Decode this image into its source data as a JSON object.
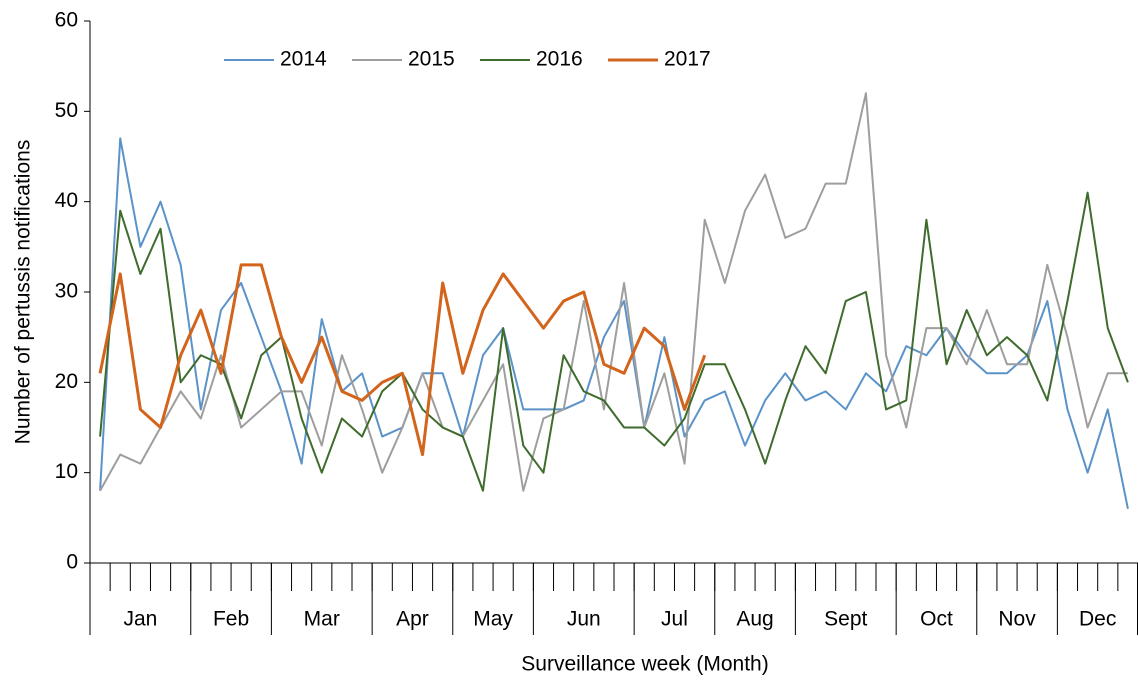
{
  "chart_data": {
    "type": "line",
    "x_label": "Surveillance week (Month)",
    "y_label": "Number  of pertussis notifications",
    "categories": [
      null,
      null,
      null,
      null,
      null,
      null,
      null,
      null,
      null,
      null,
      null,
      null,
      null,
      null,
      null,
      null,
      null,
      null,
      null,
      null,
      null,
      null,
      null,
      null,
      null,
      null,
      null,
      null,
      null,
      null,
      null,
      null,
      null,
      null,
      null,
      null,
      null,
      null,
      null,
      null,
      null,
      null,
      null,
      null,
      null,
      null,
      null,
      null,
      null,
      null,
      null,
      null
    ],
    "month_groups": [
      {
        "label": "Jan",
        "weeks": 5
      },
      {
        "label": "Feb",
        "weeks": 4
      },
      {
        "label": "Mar",
        "weeks": 5
      },
      {
        "label": "Apr",
        "weeks": 4
      },
      {
        "label": "May",
        "weeks": 4
      },
      {
        "label": "Jun",
        "weeks": 5
      },
      {
        "label": "Jul",
        "weeks": 4
      },
      {
        "label": "Aug",
        "weeks": 4
      },
      {
        "label": "Sept",
        "weeks": 5
      },
      {
        "label": "Oct",
        "weeks": 4
      },
      {
        "label": "Nov",
        "weeks": 4
      },
      {
        "label": "Dec",
        "weeks": 4
      }
    ],
    "ylim": [
      0,
      60
    ],
    "yticks": [
      0,
      10,
      20,
      30,
      40,
      50,
      60
    ],
    "legend": "top",
    "series": [
      {
        "name": "2014",
        "color": "#5b93c9",
        "width": 2,
        "values": [
          8,
          47,
          35,
          40,
          33,
          17,
          28,
          31,
          25,
          19,
          11,
          27,
          19,
          21,
          14,
          15,
          21,
          21,
          14,
          23,
          26,
          17,
          17,
          17,
          18,
          25,
          29,
          15,
          25,
          14,
          18,
          19,
          13,
          18,
          21,
          18,
          19,
          17,
          21,
          19,
          24,
          23,
          26,
          23,
          21,
          21,
          23,
          29,
          17,
          10,
          17,
          6
        ]
      },
      {
        "name": "2015",
        "color": "#9e9e9e",
        "width": 2,
        "values": [
          8,
          12,
          11,
          15,
          19,
          16,
          23,
          15,
          17,
          19,
          19,
          13,
          23,
          17,
          10,
          15,
          21,
          15,
          14,
          18,
          22,
          8,
          16,
          17,
          29,
          17,
          31,
          15,
          21,
          11,
          38,
          31,
          39,
          43,
          36,
          37,
          42,
          42,
          52,
          23,
          15,
          26,
          26,
          22,
          28,
          22,
          22,
          33,
          25,
          15,
          21,
          21
        ]
      },
      {
        "name": "2016",
        "color": "#3f6b2d",
        "width": 2,
        "values": [
          14,
          39,
          32,
          37,
          20,
          23,
          22,
          16,
          23,
          25,
          16,
          10,
          16,
          14,
          19,
          21,
          17,
          15,
          14,
          8,
          26,
          13,
          10,
          23,
          19,
          18,
          15,
          15,
          13,
          16,
          22,
          22,
          17,
          11,
          18,
          24,
          21,
          29,
          30,
          17,
          18,
          38,
          22,
          28,
          23,
          25,
          23,
          18,
          29,
          41,
          26,
          20
        ]
      },
      {
        "name": "2017",
        "color": "#d2641c",
        "width": 3,
        "values": [
          21,
          32,
          17,
          15,
          23,
          28,
          21,
          33,
          33,
          25,
          20,
          25,
          19,
          18,
          20,
          21,
          12,
          31,
          21,
          28,
          32,
          29,
          26,
          29,
          30,
          22,
          21,
          26,
          24,
          17,
          23,
          null,
          null,
          null,
          null,
          null,
          null,
          null,
          null,
          null,
          null,
          null,
          null,
          null,
          null,
          null,
          null,
          null,
          null,
          null,
          null,
          null
        ]
      }
    ]
  }
}
